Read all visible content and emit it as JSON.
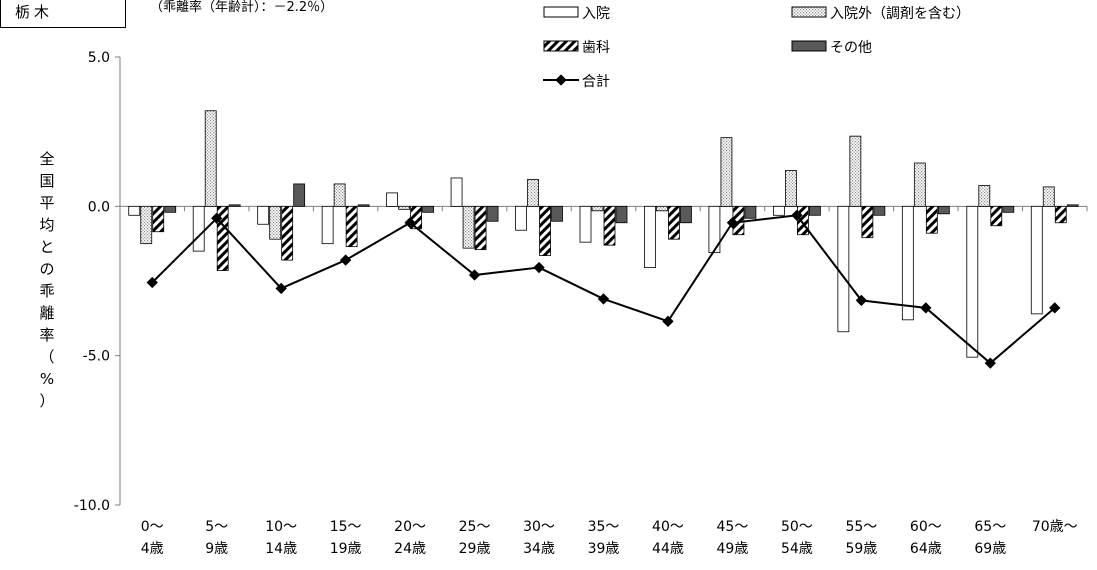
{
  "header": {
    "prefecture": "栃木",
    "note": "（乖離率（年齢計）：－2.2％）"
  },
  "colors": {
    "inpatient": "#ffffff",
    "outpatient_dots": "#9a9a9a",
    "dental_hatch": "#000000",
    "other": "#595959",
    "total": "#000000"
  },
  "chart_data": {
    "type": "bar",
    "ylabel": "全国平均との乖離率（%）",
    "ylim": [
      -10,
      5
    ],
    "yticks": [
      "5.0",
      "0.0",
      "-5.0",
      "-10.0"
    ],
    "categories": [
      [
        "0～",
        "4歳"
      ],
      [
        "5～",
        "9歳"
      ],
      [
        "10～",
        "14歳"
      ],
      [
        "15～",
        "19歳"
      ],
      [
        "20～",
        "24歳"
      ],
      [
        "25～",
        "29歳"
      ],
      [
        "30～",
        "34歳"
      ],
      [
        "35～",
        "39歳"
      ],
      [
        "40～",
        "44歳"
      ],
      [
        "45～",
        "49歳"
      ],
      [
        "50～",
        "54歳"
      ],
      [
        "55～",
        "59歳"
      ],
      [
        "60～",
        "64歳"
      ],
      [
        "65～",
        "69歳"
      ],
      [
        "70歳～",
        ""
      ]
    ],
    "series": [
      {
        "name": "入院",
        "values": [
          -0.3,
          -1.5,
          -0.6,
          -1.25,
          0.45,
          0.95,
          -0.8,
          -1.2,
          -2.05,
          -1.55,
          -0.3,
          -4.2,
          -3.8,
          -5.05,
          -3.6
        ]
      },
      {
        "name": "入院外（調剤を含む）",
        "values": [
          -1.25,
          3.2,
          -1.1,
          0.75,
          -0.1,
          -1.4,
          0.9,
          -0.15,
          -0.15,
          2.3,
          1.2,
          2.35,
          1.45,
          0.7,
          0.65
        ]
      },
      {
        "name": "歯科",
        "values": [
          -0.85,
          -2.15,
          -1.8,
          -1.35,
          -0.75,
          -1.45,
          -1.65,
          -1.3,
          -1.1,
          -0.95,
          -0.95,
          -1.05,
          -0.9,
          -0.65,
          -0.55
        ]
      },
      {
        "name": "その他",
        "values": [
          -0.2,
          0.05,
          0.75,
          0.05,
          -0.2,
          -0.5,
          -0.5,
          -0.55,
          -0.55,
          -0.4,
          -0.3,
          -0.3,
          -0.25,
          -0.2,
          0.05
        ]
      },
      {
        "name": "合計",
        "values": [
          -2.55,
          -0.4,
          -2.75,
          -1.8,
          -0.55,
          -2.3,
          -2.05,
          -3.1,
          -3.85,
          -0.55,
          -0.3,
          -3.15,
          -3.4,
          -5.25,
          -3.4
        ]
      }
    ],
    "legend_placement": "top-right",
    "grid": false
  }
}
